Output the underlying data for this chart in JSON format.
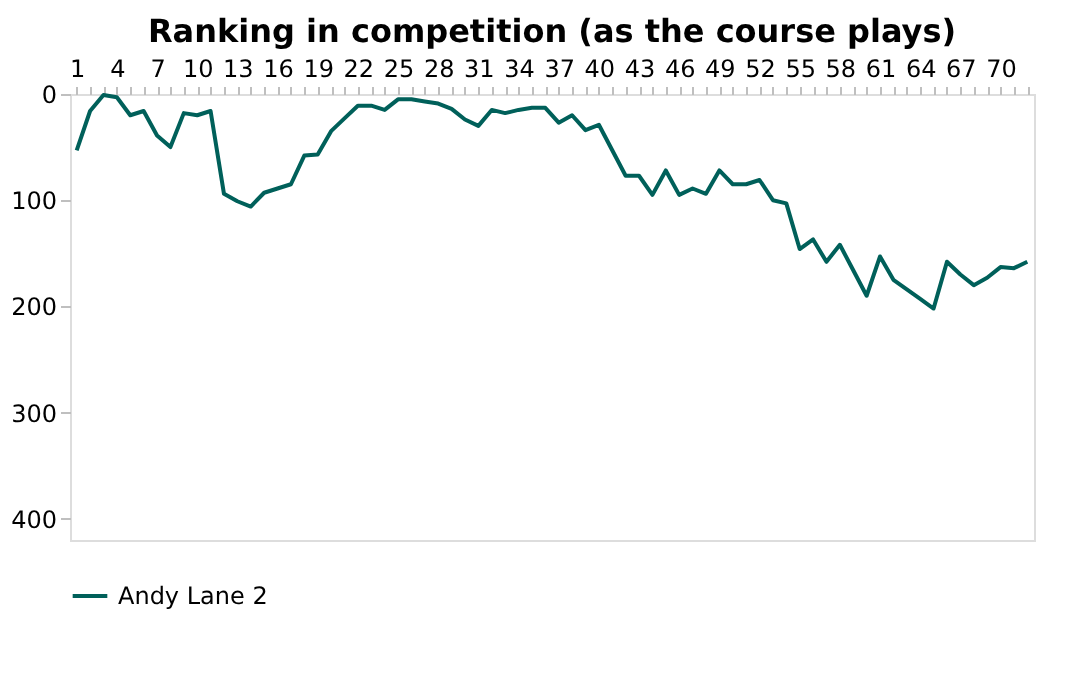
{
  "chart_data": {
    "type": "line",
    "title": "Ranking in competition (as the course plays)",
    "categories": [
      "1",
      null,
      null,
      "4",
      null,
      null,
      "7",
      null,
      null,
      "10",
      null,
      null,
      "13",
      null,
      null,
      "16",
      null,
      null,
      "19",
      null,
      null,
      "22",
      null,
      null,
      "25",
      null,
      null,
      "28",
      null,
      null,
      "31",
      null,
      null,
      "34",
      null,
      null,
      "37",
      null,
      null,
      "40",
      null,
      null,
      "43",
      null,
      null,
      "46",
      null,
      null,
      "49",
      null,
      null,
      "52",
      null,
      null,
      "55",
      null,
      null,
      "58",
      null,
      null,
      "61",
      null,
      null,
      "64",
      null,
      null,
      "67",
      null,
      null,
      "70",
      null,
      null
    ],
    "series": [
      {
        "name": "Andy Lane 2",
        "color": "#00605a",
        "values": [
          53,
          16,
          1,
          3,
          20,
          16,
          39,
          50,
          18,
          20,
          16,
          94,
          101,
          106,
          93,
          89,
          85,
          58,
          57,
          35,
          23,
          11,
          11,
          15,
          5,
          5,
          7,
          9,
          14,
          24,
          30,
          15,
          18,
          15,
          13,
          13,
          27,
          20,
          34,
          29,
          53,
          77,
          77,
          95,
          72,
          95,
          89,
          94,
          72,
          85,
          85,
          81,
          100,
          103,
          146,
          137,
          158,
          142,
          166,
          190,
          153,
          175,
          184,
          193,
          202,
          158,
          170,
          180,
          173,
          163,
          164,
          158
        ]
      }
    ],
    "ylim": [
      420,
      0
    ],
    "yticks": [
      0,
      100,
      200,
      300,
      400
    ],
    "grid": false,
    "legend": "bottom",
    "line_style": "solid",
    "marker": "none"
  }
}
